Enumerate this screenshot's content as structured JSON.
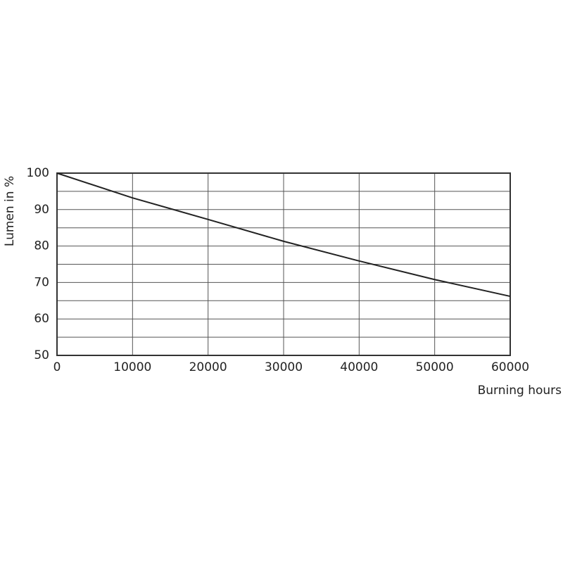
{
  "chart_data": {
    "type": "line",
    "y_label": "Lumen in %",
    "x_label": "Burning hours",
    "x": [
      0,
      10000,
      20000,
      30000,
      40000,
      50000,
      60000
    ],
    "series": [
      {
        "color": "#222222",
        "values": [
          100,
          93.2,
          87.3,
          81.3,
          75.9,
          70.8,
          66.2
        ]
      }
    ],
    "xlim": [
      0,
      60000
    ],
    "xticks": [
      0,
      10000,
      20000,
      30000,
      40000,
      50000,
      60000
    ],
    "ylim": [
      50,
      100
    ],
    "yticks": [
      50,
      60,
      70,
      80,
      90,
      100
    ],
    "y_minor_grid": [
      55,
      65,
      75,
      85,
      95
    ],
    "grid": true
  }
}
